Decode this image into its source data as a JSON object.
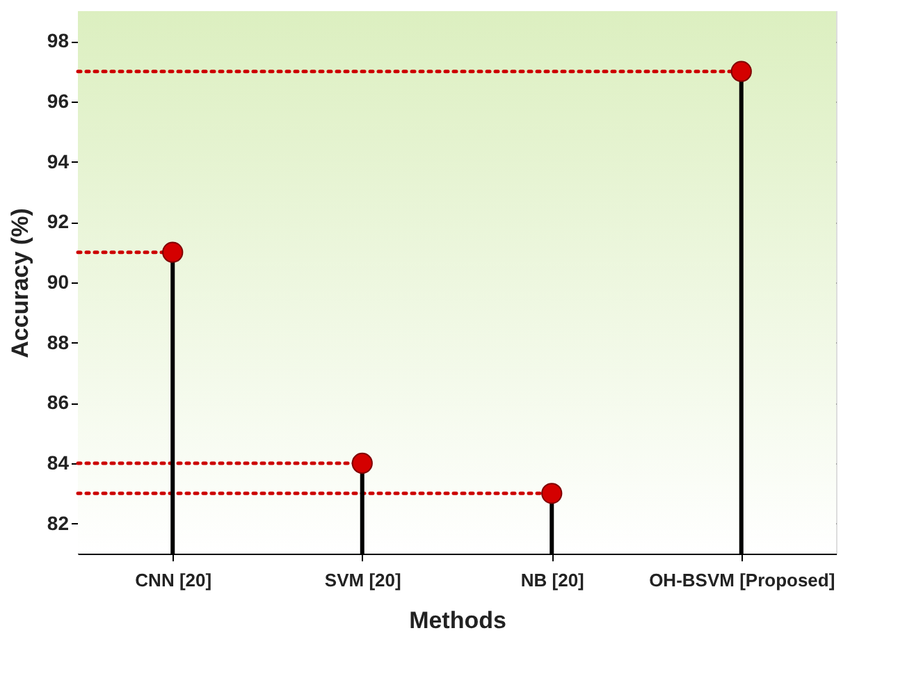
{
  "chart_data": {
    "type": "lollipop",
    "xlabel": "Methods",
    "ylabel": "Accuracy (%)",
    "categories": [
      "CNN [20]",
      "SVM [20]",
      "NB [20]",
      "OH-BSVM [Proposed]"
    ],
    "series": [
      {
        "color": "#d40000",
        "values": [
          91,
          84,
          83,
          97
        ]
      }
    ],
    "ylim": [
      81,
      99
    ],
    "yticks": [
      82,
      84,
      86,
      88,
      90,
      92,
      94,
      96,
      98
    ],
    "ref_lines": [
      {
        "axis": "y",
        "value": 91,
        "color": "#cc0000",
        "line_style": "dotted"
      },
      {
        "axis": "y",
        "value": 84,
        "color": "#cc0000",
        "line_style": "dotted"
      },
      {
        "axis": "y",
        "value": 83,
        "color": "#cc0000",
        "line_style": "dotted"
      },
      {
        "axis": "y",
        "value": 97,
        "color": "#cc0000",
        "line_style": "dotted"
      }
    ],
    "grid": true,
    "marker": "circle"
  }
}
